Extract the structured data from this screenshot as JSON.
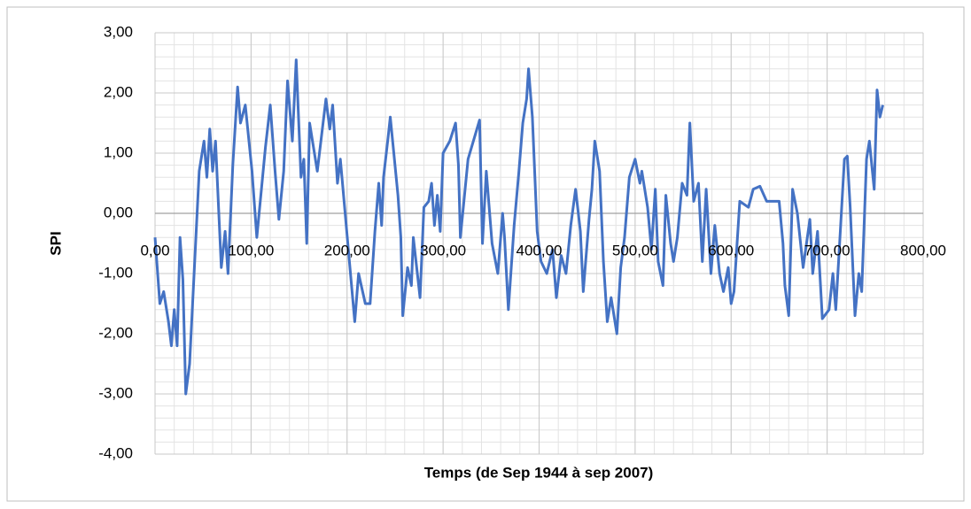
{
  "chart_data": {
    "type": "line",
    "xlabel": "Temps (de Sep 1944 à sep 2007)",
    "ylabel": "SPI",
    "xlim": [
      0,
      800
    ],
    "ylim": [
      -4,
      3
    ],
    "xticks": [
      {
        "value": 0,
        "label": "0,00"
      },
      {
        "value": 100,
        "label": "100,00"
      },
      {
        "value": 200,
        "label": "200,00"
      },
      {
        "value": 300,
        "label": "300,00"
      },
      {
        "value": 400,
        "label": "400,00"
      },
      {
        "value": 500,
        "label": "500,00"
      },
      {
        "value": 600,
        "label": "600,00"
      },
      {
        "value": 700,
        "label": "700,00"
      },
      {
        "value": 800,
        "label": "800,00"
      }
    ],
    "yticks": [
      {
        "value": 3,
        "label": "3,00"
      },
      {
        "value": 2,
        "label": "2,00"
      },
      {
        "value": 1,
        "label": "1,00"
      },
      {
        "value": 0,
        "label": "0,00"
      },
      {
        "value": -1,
        "label": "-1,00"
      },
      {
        "value": -2,
        "label": "-2,00"
      },
      {
        "value": -3,
        "label": "-3,00"
      },
      {
        "value": -4,
        "label": "-4,00"
      }
    ],
    "xminor": 20,
    "yminor": 0.2,
    "grid": true,
    "series": [
      {
        "color": "#4472c4",
        "x": [
          0,
          5,
          9,
          14,
          17,
          20,
          23,
          26,
          29,
          32,
          36,
          41,
          46,
          51,
          54,
          57,
          60,
          63,
          69,
          73,
          76,
          81,
          86,
          89,
          94,
          101,
          106,
          115,
          120,
          125,
          129,
          134,
          138,
          143,
          147,
          152,
          155,
          158,
          161,
          169,
          178,
          182,
          185,
          190,
          193,
          203,
          208,
          212,
          219,
          224,
          229,
          233,
          236,
          238,
          243,
          245,
          253,
          256,
          258,
          263,
          267,
          269,
          276,
          280,
          285,
          288,
          291,
          294,
          297,
          300,
          307,
          313,
          316,
          318,
          326,
          338,
          341,
          345,
          351,
          357,
          362,
          364,
          368,
          374,
          379,
          383,
          387,
          389,
          393,
          398,
          402,
          408,
          414,
          418,
          423,
          428,
          433,
          438,
          443,
          446,
          452,
          455,
          458,
          463,
          467,
          471,
          475,
          481,
          485,
          489,
          494,
          500,
          505,
          507,
          513,
          517,
          521,
          524,
          529,
          532,
          537,
          540,
          544,
          549,
          554,
          557,
          561,
          566,
          570,
          574,
          579,
          583,
          588,
          592,
          597,
          600,
          603,
          609,
          618,
          623,
          630,
          637,
          650,
          654,
          656,
          660,
          664,
          669,
          675,
          682,
          685,
          690,
          695,
          702,
          706,
          709,
          713,
          718,
          721,
          724,
          729,
          733,
          736,
          741,
          744,
          749,
          752,
          755,
          758
        ],
        "values": [
          -0.4,
          -1.5,
          -1.3,
          -1.8,
          -2.2,
          -1.6,
          -2.2,
          -0.4,
          -1.1,
          -3.0,
          -2.5,
          -0.9,
          0.7,
          1.2,
          0.6,
          1.4,
          0.7,
          1.2,
          -0.9,
          -0.3,
          -1.0,
          0.8,
          2.1,
          1.5,
          1.8,
          0.7,
          -0.4,
          1.1,
          1.8,
          0.7,
          -0.1,
          0.7,
          2.2,
          1.2,
          2.55,
          0.6,
          0.9,
          -0.5,
          1.5,
          0.7,
          1.9,
          1.4,
          1.8,
          0.5,
          0.9,
          -0.9,
          -1.8,
          -1.0,
          -1.5,
          -1.5,
          -0.3,
          0.5,
          -0.2,
          0.6,
          1.3,
          1.6,
          0.3,
          -0.4,
          -1.7,
          -0.9,
          -1.2,
          -0.4,
          -1.4,
          0.1,
          0.2,
          0.5,
          -0.2,
          0.3,
          -0.3,
          1.0,
          1.2,
          1.5,
          0.8,
          -0.4,
          0.9,
          1.55,
          -0.5,
          0.7,
          -0.5,
          -1.0,
          0.0,
          -0.4,
          -1.6,
          -0.2,
          0.7,
          1.5,
          1.9,
          2.4,
          1.6,
          -0.3,
          -0.8,
          -1.0,
          -0.6,
          -1.4,
          -0.7,
          -1.0,
          -0.2,
          0.4,
          -0.3,
          -1.3,
          -0.1,
          0.4,
          1.2,
          0.7,
          -0.8,
          -1.8,
          -1.4,
          -2.0,
          -0.9,
          -0.4,
          0.6,
          0.9,
          0.5,
          0.7,
          0.1,
          -0.6,
          0.4,
          -0.8,
          -1.2,
          0.3,
          -0.5,
          -0.8,
          -0.4,
          0.5,
          0.3,
          1.5,
          0.2,
          0.5,
          -0.8,
          0.4,
          -1.0,
          -0.2,
          -1.0,
          -1.3,
          -0.9,
          -1.5,
          -1.3,
          0.2,
          0.1,
          0.4,
          0.45,
          0.2,
          0.2,
          -0.5,
          -1.2,
          -1.7,
          0.4,
          0.0,
          -0.9,
          -0.1,
          -1.0,
          -0.3,
          -1.75,
          -1.6,
          -1.0,
          -1.6,
          -0.5,
          0.9,
          0.95,
          0.1,
          -1.7,
          -1.0,
          -1.3,
          0.9,
          1.2,
          0.4,
          2.05,
          1.6,
          1.8
        ]
      }
    ]
  }
}
